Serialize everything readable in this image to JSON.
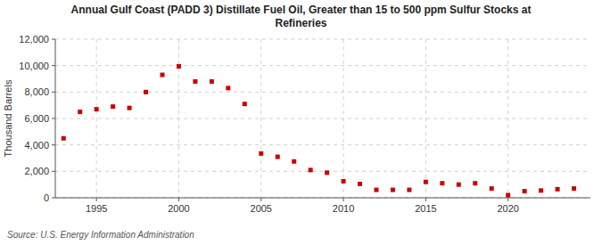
{
  "chart_data": {
    "type": "scatter",
    "title": "Annual Gulf Coast (PADD 3) Distillate Fuel Oil, Greater than 15 to 500 ppm Sulfur Stocks at\nRefineries",
    "ylabel": "Thousand Barrels",
    "source": "Source: U.S. Energy Information Administration",
    "x": [
      1993,
      1994,
      1995,
      1996,
      1997,
      1998,
      1999,
      2000,
      2001,
      2002,
      2003,
      2004,
      2005,
      2006,
      2007,
      2008,
      2009,
      2010,
      2011,
      2012,
      2013,
      2014,
      2015,
      2016,
      2017,
      2018,
      2019,
      2020,
      2021,
      2022,
      2023,
      2024
    ],
    "values": [
      4500,
      6500,
      6700,
      6900,
      6800,
      8000,
      9300,
      9950,
      8800,
      8800,
      8300,
      7100,
      3350,
      3100,
      2750,
      2100,
      1900,
      1250,
      1050,
      600,
      600,
      600,
      1200,
      1100,
      1000,
      1100,
      700,
      200,
      500,
      550,
      650,
      700
    ],
    "color": "#cc0000",
    "marker": "square",
    "xlim": [
      1992.5,
      2025
    ],
    "ylim": [
      0,
      12000
    ],
    "xticks": [
      1995,
      2000,
      2005,
      2010,
      2015,
      2020
    ],
    "yticks": [
      0,
      {
        "value": 2000,
        "label": "2,000"
      },
      {
        "value": 4000,
        "label": "4,000"
      },
      {
        "value": 6000,
        "label": "6,000"
      },
      {
        "value": 8000,
        "label": "8,000"
      },
      {
        "value": 10000,
        "label": "10,000"
      },
      {
        "value": 12000,
        "label": "12,000"
      }
    ],
    "grid": true
  }
}
